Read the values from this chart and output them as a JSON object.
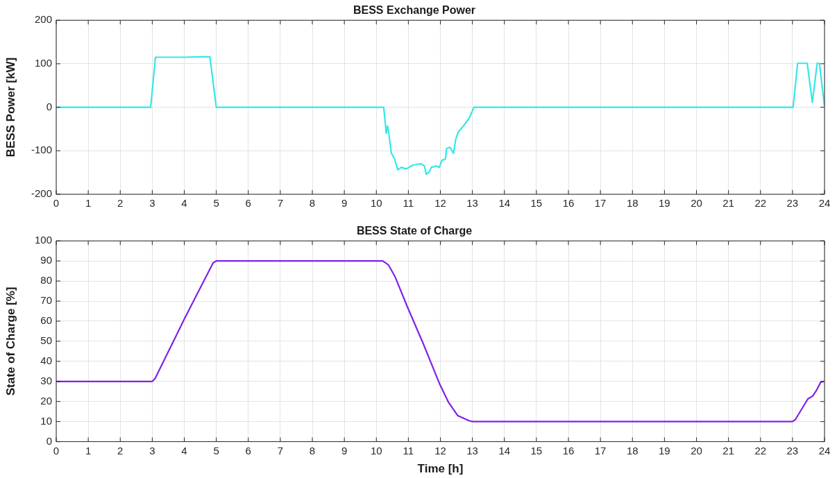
{
  "chart_data": [
    {
      "type": "line",
      "title": "BESS Exchange Power",
      "ylabel": "BESS Power [kW]",
      "xlim": [
        0,
        24
      ],
      "xticks": [
        0,
        1,
        2,
        3,
        4,
        5,
        6,
        7,
        8,
        9,
        10,
        11,
        12,
        13,
        14,
        15,
        16,
        17,
        18,
        19,
        20,
        21,
        22,
        23,
        24
      ],
      "ylim": [
        -200,
        200
      ],
      "yticks": [
        -200,
        -100,
        0,
        100,
        200
      ],
      "grid": true,
      "line_style": "solid",
      "marker": "none",
      "series": [
        {
          "color": "#33e8e8",
          "x": [
            0,
            2.95,
            3.1,
            3.5,
            4.0,
            4.5,
            4.8,
            5.0,
            10.23,
            10.31,
            10.35,
            10.38,
            10.47,
            10.57,
            10.67,
            10.78,
            10.93,
            11.14,
            11.29,
            11.4,
            11.5,
            11.56,
            11.65,
            11.72,
            11.87,
            11.97,
            12.05,
            12.16,
            12.19,
            12.3,
            12.41,
            12.48,
            12.55,
            12.7,
            12.9,
            13.05,
            23.02,
            23.16,
            23.46,
            23.62,
            23.77,
            23.84,
            24.0
          ],
          "values": [
            0,
            0,
            115,
            115,
            115,
            116,
            116,
            0,
            0,
            -60,
            -43,
            -55,
            -106,
            -119,
            -144,
            -138,
            -142,
            -133,
            -131,
            -130,
            -135,
            -154,
            -149,
            -138,
            -135,
            -138,
            -122,
            -119,
            -95,
            -92,
            -106,
            -74,
            -58,
            -45,
            -25,
            0,
            0,
            101,
            101,
            11,
            101,
            101,
            2
          ]
        }
      ]
    },
    {
      "type": "line",
      "title": "BESS State of Charge",
      "xlabel": "Time [h]",
      "ylabel": "State of Charge [%]",
      "xlim": [
        0,
        24
      ],
      "xticks": [
        0,
        1,
        2,
        3,
        4,
        5,
        6,
        7,
        8,
        9,
        10,
        11,
        12,
        13,
        14,
        15,
        16,
        17,
        18,
        19,
        20,
        21,
        22,
        23,
        24
      ],
      "ylim": [
        0,
        100
      ],
      "yticks": [
        0,
        10,
        20,
        30,
        40,
        50,
        60,
        70,
        80,
        90,
        100
      ],
      "grid": true,
      "line_style": "solid",
      "marker": "none",
      "series": [
        {
          "color": "#7f22e8",
          "x": [
            0,
            3.0,
            3.09,
            4.0,
            4.9,
            5.0,
            10.2,
            10.38,
            10.59,
            10.96,
            11.46,
            11.97,
            12.25,
            12.54,
            12.9,
            13.0,
            23.0,
            23.09,
            23.48,
            23.63,
            23.74,
            23.88,
            23.98
          ],
          "values": [
            30,
            30,
            31.5,
            61,
            89,
            90,
            90,
            88,
            82,
            67.5,
            49,
            29,
            19.7,
            13,
            10.4,
            10,
            10,
            11,
            21.3,
            22.7,
            25.3,
            29.6,
            30
          ]
        }
      ]
    }
  ]
}
